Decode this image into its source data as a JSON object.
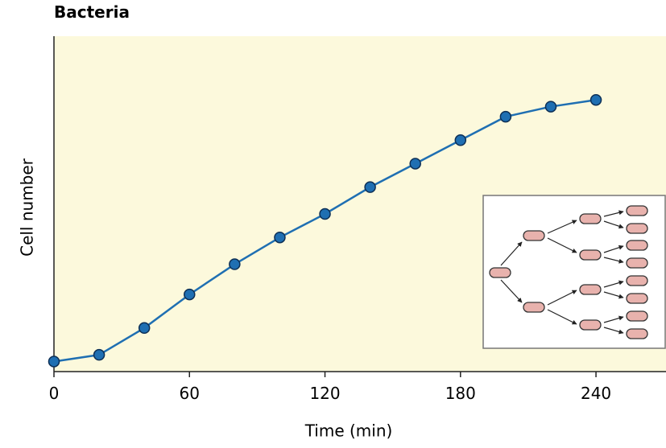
{
  "chart_data": {
    "type": "line",
    "title": "Bacteria",
    "x_label": "Time (min)",
    "y_label": "Cell number",
    "x": [
      0,
      20,
      40,
      60,
      80,
      100,
      120,
      140,
      160,
      180,
      200,
      220,
      240
    ],
    "series": [
      {
        "name": "Bacteria",
        "color": "#1f6fb2",
        "values": [
          3,
          5,
          13,
          23,
          32,
          40,
          47,
          55,
          62,
          69,
          76,
          79,
          81
        ]
      }
    ],
    "xlim": [
      0,
      271
    ],
    "xticks": [
      0,
      60,
      120,
      180,
      240
    ],
    "ylim": [
      0,
      100
    ],
    "background": "#fcf9dc",
    "grid": false
  }
}
